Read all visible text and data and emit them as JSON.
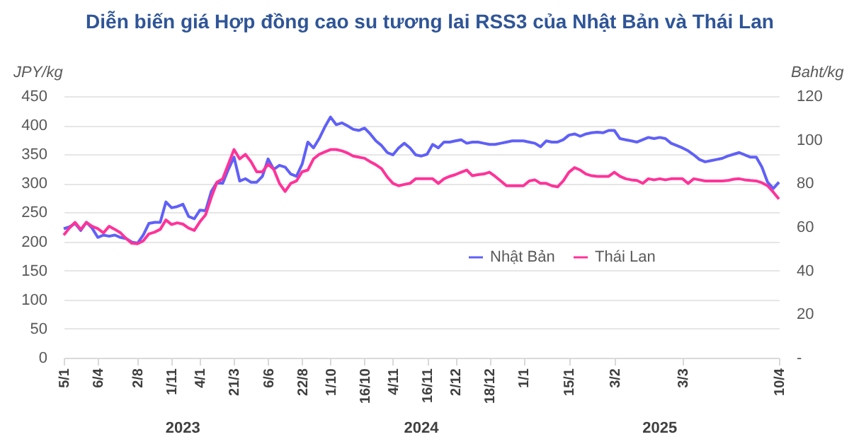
{
  "chart_data": {
    "type": "line",
    "title": "Diễn biến giá Hợp đồng cao su tương lai RSS3 của Nhật Bản và Thái Lan",
    "ylabel": "JPY/kg",
    "y2label": "Baht/kg",
    "categories": [
      "5/1",
      null,
      null,
      null,
      null,
      null,
      "6/4",
      null,
      null,
      null,
      null,
      null,
      null,
      "2/8",
      null,
      null,
      null,
      null,
      null,
      "1/11",
      null,
      null,
      null,
      null,
      "4/1",
      null,
      null,
      null,
      null,
      null,
      "21/3",
      null,
      null,
      null,
      null,
      null,
      "6/6",
      null,
      null,
      null,
      null,
      null,
      "22/8",
      null,
      null,
      null,
      null,
      "1/10",
      null,
      null,
      null,
      null,
      null,
      "16/10",
      null,
      null,
      null,
      null,
      "4/11",
      null,
      null,
      null,
      null,
      null,
      "16/11",
      null,
      null,
      null,
      null,
      "2/12",
      null,
      null,
      null,
      null,
      null,
      "18/12",
      null,
      null,
      null,
      null,
      null,
      "1/1",
      null,
      null,
      null,
      null,
      null,
      null,
      null,
      "15/1",
      null,
      null,
      null,
      null,
      null,
      null,
      null,
      "3/2",
      null,
      null,
      null,
      null,
      null,
      null,
      null,
      null,
      null,
      null,
      null,
      "3/3",
      null,
      null,
      null,
      null,
      null,
      null,
      null,
      null,
      null,
      null,
      null,
      null,
      null,
      null,
      null,
      null,
      "10/4"
    ],
    "series": [
      {
        "name": "Nhật Bản",
        "color": "#6060f8",
        "values": [
          222,
          225,
          231,
          219,
          233,
          223,
          207,
          211,
          209,
          211,
          207,
          205,
          199,
          197,
          211,
          231,
          233,
          233,
          268,
          258,
          260,
          264,
          243,
          239,
          254,
          253,
          286,
          302,
          300,
          324,
          345,
          304,
          308,
          302,
          302,
          312,
          342,
          324,
          331,
          328,
          316,
          312,
          333,
          371,
          361,
          377,
          397,
          414,
          401,
          404,
          399,
          393,
          391,
          395,
          385,
          373,
          365,
          353,
          349,
          361,
          369,
          361,
          349,
          347,
          350,
          367,
          361,
          371,
          371,
          373,
          375,
          369,
          371,
          371,
          369,
          367,
          367,
          369,
          371,
          373,
          373,
          373,
          371,
          369,
          363,
          373,
          371,
          371,
          375,
          383,
          385,
          381,
          385,
          387,
          388,
          387,
          391,
          391,
          377,
          375,
          373,
          371,
          375,
          379,
          377,
          379,
          377,
          369,
          365,
          361,
          356,
          349,
          341,
          337,
          339,
          341,
          343,
          347,
          350,
          353,
          349,
          345,
          345,
          328,
          302,
          291,
          302
        ]
      },
      {
        "name": "Thái Lan",
        "color": "#ff3399",
        "axis": "y2",
        "values": [
          56.3,
          59.5,
          62.1,
          58.9,
          62.1,
          60.3,
          59.2,
          57.3,
          60.3,
          58.9,
          57.3,
          54.7,
          52.5,
          52.3,
          53.6,
          56.8,
          57.6,
          58.9,
          63.2,
          61.1,
          61.9,
          61.3,
          59.5,
          58.4,
          62.4,
          65.6,
          73.6,
          80.5,
          82.1,
          88.8,
          95.5,
          91.2,
          93.3,
          89.9,
          85.3,
          85.3,
          88.8,
          86.4,
          80,
          76.3,
          80,
          81.1,
          85.3,
          86.1,
          91.2,
          93.3,
          94.4,
          95.5,
          95.5,
          94.9,
          93.9,
          92.5,
          92,
          91.5,
          89.9,
          88.5,
          86.7,
          82.9,
          80,
          78.9,
          79.5,
          80,
          82.1,
          82.1,
          82.1,
          82.1,
          80,
          82.1,
          83.2,
          84,
          85.1,
          86.1,
          83.5,
          84,
          84.3,
          85.1,
          83.2,
          81.1,
          78.9,
          78.9,
          78.9,
          78.9,
          81.1,
          81.6,
          80,
          80,
          78.9,
          78.4,
          81.1,
          85.1,
          87.2,
          86.1,
          84.3,
          83.5,
          83.2,
          83.2,
          83.2,
          85.1,
          83.2,
          82.1,
          81.6,
          81.3,
          80,
          82.1,
          81.6,
          82.1,
          81.6,
          82.1,
          82.1,
          82.1,
          80,
          82.1,
          81.6,
          81.1,
          81.1,
          81.1,
          81.1,
          81.3,
          81.9,
          82.1,
          81.6,
          81.3,
          81.1,
          80.3,
          78.9,
          76,
          72.8
        ]
      }
    ],
    "ylim": [
      0,
      450
    ],
    "yticks": [
      0,
      50,
      100,
      150,
      200,
      250,
      300,
      350,
      400,
      450
    ],
    "y2lim": [
      0,
      120
    ],
    "y2ticks": [
      {
        "value": 0,
        "label": "-"
      },
      20,
      40,
      60,
      80,
      100,
      120
    ],
    "grid": "y",
    "legend": "right",
    "marker": "none",
    "line_style": "solid",
    "annotations": [
      "2023",
      "2024",
      "2025"
    ]
  }
}
